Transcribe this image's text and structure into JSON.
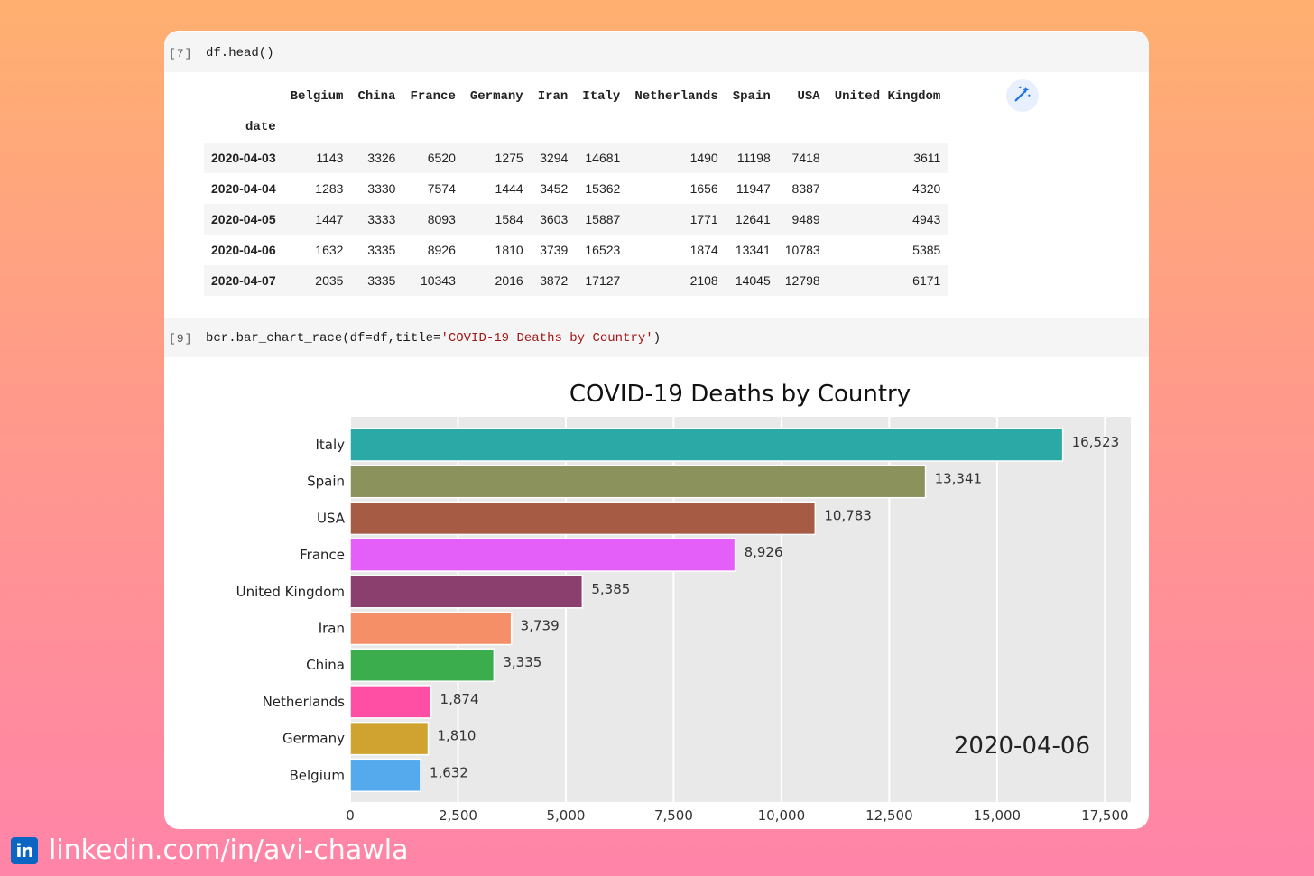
{
  "cells": [
    {
      "prompt": "[7]",
      "code": "df.head()"
    },
    {
      "prompt": "[9]",
      "code_prefix": "bcr.bar_chart_race(df=df,title=",
      "code_string": "'COVID-19 Deaths by Country'",
      "code_suffix": ")"
    }
  ],
  "dataframe": {
    "index_name": "date",
    "columns": [
      "Belgium",
      "China",
      "France",
      "Germany",
      "Iran",
      "Italy",
      "Netherlands",
      "Spain",
      "USA",
      "United Kingdom"
    ],
    "rows": [
      {
        "date": "2020-04-03",
        "values": [
          "1143",
          "3326",
          "6520",
          "1275",
          "3294",
          "14681",
          "1490",
          "11198",
          "7418",
          "3611"
        ]
      },
      {
        "date": "2020-04-04",
        "values": [
          "1283",
          "3330",
          "7574",
          "1444",
          "3452",
          "15362",
          "1656",
          "11947",
          "8387",
          "4320"
        ]
      },
      {
        "date": "2020-04-05",
        "values": [
          "1447",
          "3333",
          "8093",
          "1584",
          "3603",
          "15887",
          "1771",
          "12641",
          "9489",
          "4943"
        ]
      },
      {
        "date": "2020-04-06",
        "values": [
          "1632",
          "3335",
          "8926",
          "1810",
          "3739",
          "16523",
          "1874",
          "13341",
          "10783",
          "5385"
        ]
      },
      {
        "date": "2020-04-07",
        "values": [
          "2035",
          "3335",
          "10343",
          "2016",
          "3872",
          "17127",
          "2108",
          "14045",
          "12798",
          "6171"
        ]
      }
    ]
  },
  "magic_button_icon": "magic-wand-icon",
  "chart_data": {
    "type": "bar",
    "orientation": "horizontal",
    "title": "COVID-19 Deaths by Country",
    "period_label": "2020-04-06",
    "categories": [
      "Italy",
      "Spain",
      "USA",
      "France",
      "United Kingdom",
      "Iran",
      "China",
      "Netherlands",
      "Germany",
      "Belgium"
    ],
    "values": [
      16523,
      13341,
      10783,
      8926,
      5385,
      3739,
      3335,
      1874,
      1810,
      1632
    ],
    "value_labels": [
      "16,523",
      "13,341",
      "10,783",
      "8,926",
      "5,385",
      "3,739",
      "3,335",
      "1,874",
      "1,810",
      "1,632"
    ],
    "colors": [
      "#2aa9a7",
      "#8c925c",
      "#a65b45",
      "#e45ef9",
      "#8b3f6e",
      "#f48f67",
      "#3cad4d",
      "#ff4fa5",
      "#d0a22f",
      "#55aaee"
    ],
    "xlim": [
      0,
      18100
    ],
    "xticks": [
      0,
      2500,
      5000,
      7500,
      10000,
      12500,
      15000,
      17500
    ],
    "xtick_labels": [
      "0",
      "2,500",
      "5,000",
      "7,500",
      "10,000",
      "12,500",
      "15,000",
      "17,500"
    ],
    "grid": true,
    "background": "#e9e9e9"
  },
  "footer": {
    "logo_text": "in",
    "text": "linkedin.com/in/avi-chawla"
  }
}
